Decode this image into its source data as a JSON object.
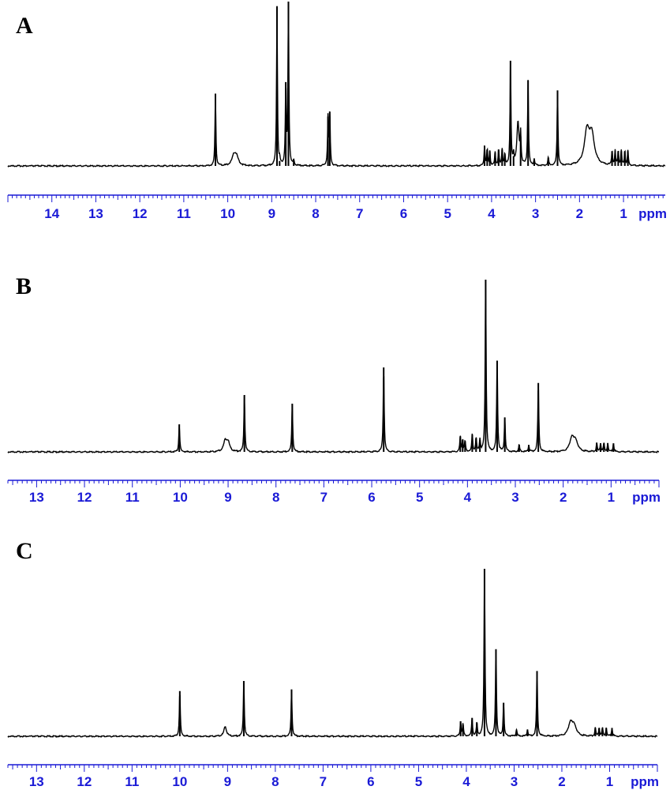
{
  "chart_data": [
    {
      "panel": "A",
      "type": "line",
      "unit": "ppm",
      "xlim": [
        15.0,
        0.05
      ],
      "ticks": [
        14,
        13,
        12,
        11,
        10,
        9,
        8,
        7,
        6,
        5,
        4,
        3,
        2,
        1
      ],
      "peaks": [
        {
          "x": 10.28,
          "h": 0.44
        },
        {
          "x": 9.86,
          "h": 0.06,
          "w": 0.05
        },
        {
          "x": 9.8,
          "h": 0.05,
          "w": 0.05
        },
        {
          "x": 8.88,
          "h": 0.97
        },
        {
          "x": 8.82,
          "h": 0.03
        },
        {
          "x": 8.68,
          "h": 0.51
        },
        {
          "x": 8.62,
          "h": 1.0
        },
        {
          "x": 8.5,
          "h": 0.03
        },
        {
          "x": 7.72,
          "h": 0.3
        },
        {
          "x": 7.68,
          "h": 0.33
        },
        {
          "x": 4.16,
          "h": 0.12
        },
        {
          "x": 4.1,
          "h": 0.1
        },
        {
          "x": 4.04,
          "h": 0.09
        },
        {
          "x": 3.92,
          "h": 0.08
        },
        {
          "x": 3.84,
          "h": 0.1
        },
        {
          "x": 3.76,
          "h": 0.1
        },
        {
          "x": 3.7,
          "h": 0.07
        },
        {
          "x": 3.57,
          "h": 0.64
        },
        {
          "x": 3.5,
          "h": 0.06
        },
        {
          "x": 3.4,
          "h": 0.26,
          "w": 0.03
        },
        {
          "x": 3.34,
          "h": 0.18
        },
        {
          "x": 3.17,
          "h": 0.52
        },
        {
          "x": 3.03,
          "h": 0.04
        },
        {
          "x": 2.71,
          "h": 0.05
        },
        {
          "x": 2.5,
          "h": 0.46
        },
        {
          "x": 1.83,
          "h": 0.2,
          "w": 0.07
        },
        {
          "x": 1.72,
          "h": 0.17,
          "w": 0.07
        },
        {
          "x": 1.26,
          "h": 0.09
        },
        {
          "x": 1.19,
          "h": 0.09
        },
        {
          "x": 1.12,
          "h": 0.09
        },
        {
          "x": 1.05,
          "h": 0.09
        },
        {
          "x": 0.97,
          "h": 0.09
        },
        {
          "x": 0.9,
          "h": 0.09
        }
      ]
    },
    {
      "panel": "B",
      "type": "line",
      "unit": "ppm",
      "xlim": [
        13.6,
        0.0
      ],
      "ticks": [
        13,
        12,
        11,
        10,
        9,
        8,
        7,
        6,
        5,
        4,
        3,
        2,
        1
      ],
      "peaks": [
        {
          "x": 10.02,
          "h": 0.16
        },
        {
          "x": 9.06,
          "h": 0.06,
          "w": 0.04
        },
        {
          "x": 9.0,
          "h": 0.05,
          "w": 0.04
        },
        {
          "x": 8.66,
          "h": 0.33
        },
        {
          "x": 7.66,
          "h": 0.28
        },
        {
          "x": 5.75,
          "h": 0.49
        },
        {
          "x": 4.15,
          "h": 0.09
        },
        {
          "x": 4.1,
          "h": 0.07
        },
        {
          "x": 4.05,
          "h": 0.06
        },
        {
          "x": 3.9,
          "h": 0.1
        },
        {
          "x": 3.82,
          "h": 0.08
        },
        {
          "x": 3.74,
          "h": 0.07
        },
        {
          "x": 3.62,
          "h": 1.0
        },
        {
          "x": 3.38,
          "h": 0.53
        },
        {
          "x": 3.22,
          "h": 0.2
        },
        {
          "x": 2.92,
          "h": 0.04
        },
        {
          "x": 2.72,
          "h": 0.04
        },
        {
          "x": 2.52,
          "h": 0.4
        },
        {
          "x": 1.82,
          "h": 0.08,
          "w": 0.05
        },
        {
          "x": 1.74,
          "h": 0.06,
          "w": 0.05
        },
        {
          "x": 1.3,
          "h": 0.05
        },
        {
          "x": 1.22,
          "h": 0.05
        },
        {
          "x": 1.15,
          "h": 0.05
        },
        {
          "x": 1.07,
          "h": 0.05
        },
        {
          "x": 0.95,
          "h": 0.05
        }
      ]
    },
    {
      "panel": "C",
      "type": "line",
      "unit": "ppm",
      "xlim": [
        13.6,
        0.0
      ],
      "ticks": [
        13,
        12,
        11,
        10,
        9,
        8,
        7,
        6,
        5,
        4,
        3,
        2,
        1
      ],
      "peaks": [
        {
          "x": 10.0,
          "h": 0.27
        },
        {
          "x": 9.05,
          "h": 0.06,
          "w": 0.03
        },
        {
          "x": 8.66,
          "h": 0.33
        },
        {
          "x": 7.66,
          "h": 0.28
        },
        {
          "x": 4.12,
          "h": 0.09
        },
        {
          "x": 4.07,
          "h": 0.07
        },
        {
          "x": 3.88,
          "h": 0.11
        },
        {
          "x": 3.78,
          "h": 0.08
        },
        {
          "x": 3.62,
          "h": 1.0
        },
        {
          "x": 3.38,
          "h": 0.52
        },
        {
          "x": 3.22,
          "h": 0.2
        },
        {
          "x": 2.95,
          "h": 0.04
        },
        {
          "x": 2.72,
          "h": 0.04
        },
        {
          "x": 2.52,
          "h": 0.39
        },
        {
          "x": 1.82,
          "h": 0.08,
          "w": 0.05
        },
        {
          "x": 1.74,
          "h": 0.06,
          "w": 0.05
        },
        {
          "x": 1.3,
          "h": 0.05
        },
        {
          "x": 1.22,
          "h": 0.05
        },
        {
          "x": 1.15,
          "h": 0.05
        },
        {
          "x": 1.07,
          "h": 0.05
        },
        {
          "x": 0.95,
          "h": 0.05
        }
      ]
    }
  ],
  "colors": {
    "trace": "#000000",
    "axis": "#1a1ad6"
  }
}
